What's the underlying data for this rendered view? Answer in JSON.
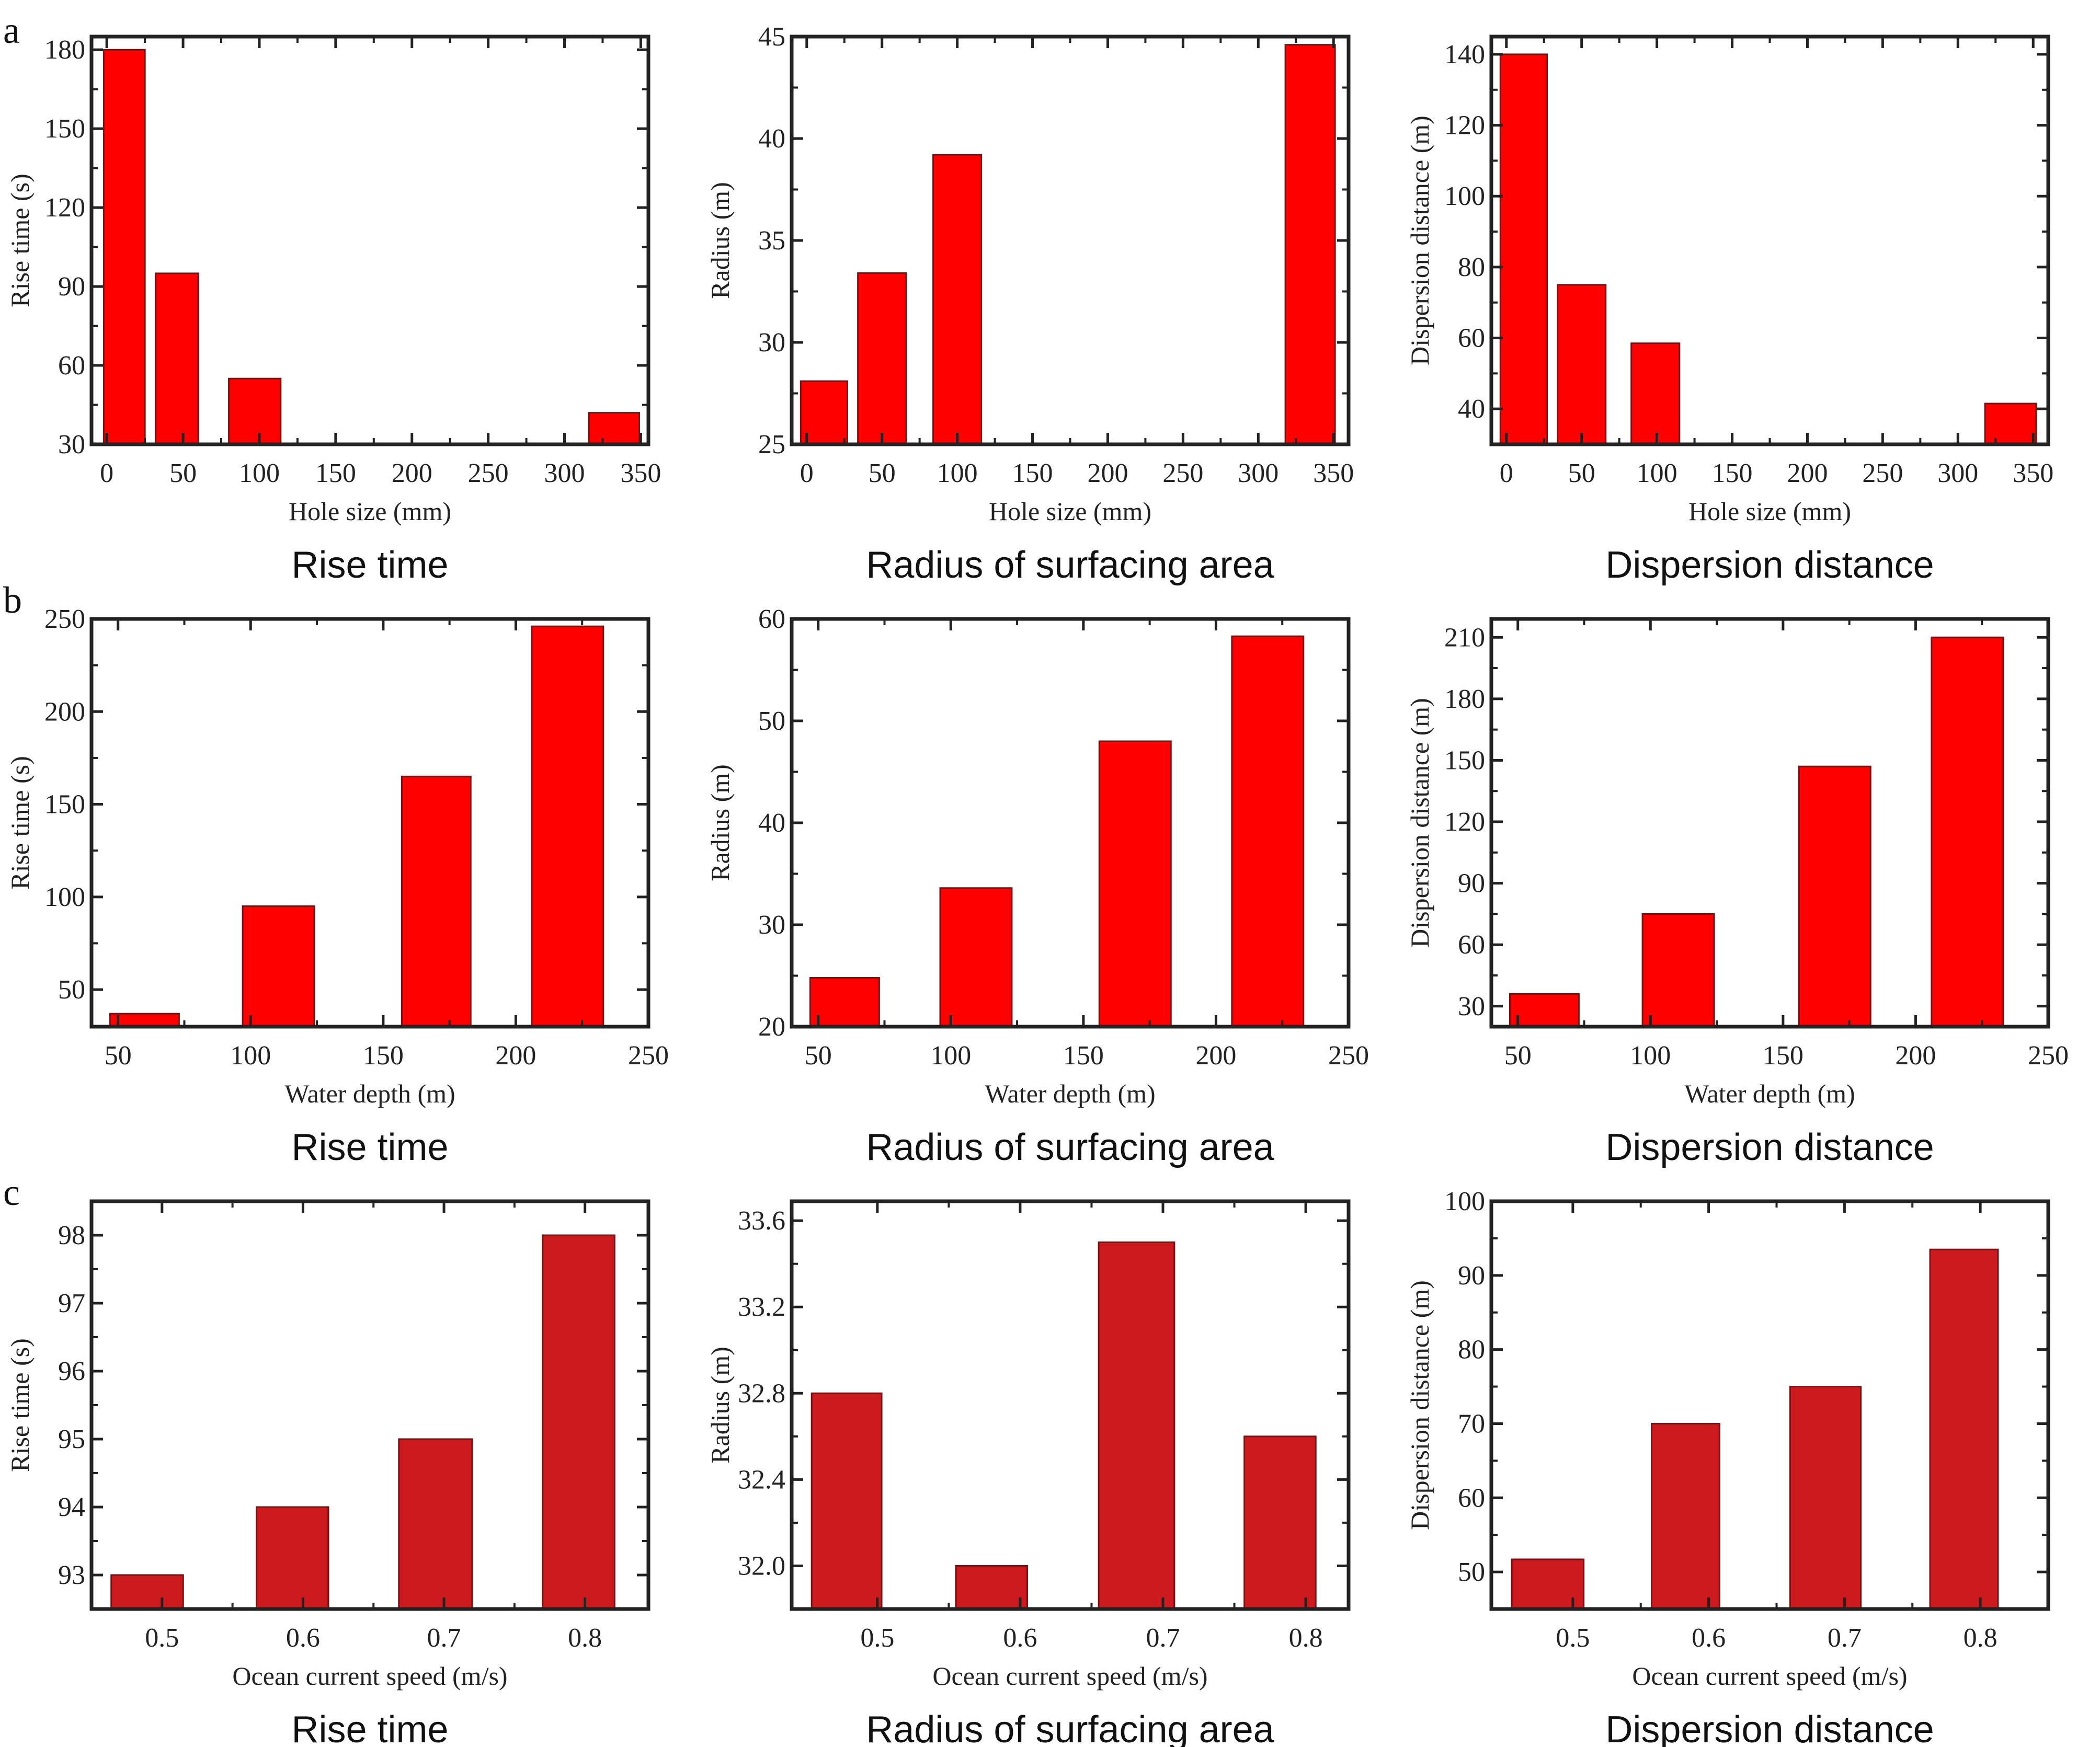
{
  "figure": {
    "row_labels": [
      "a",
      "b",
      "c"
    ]
  },
  "chart_data": [
    {
      "id": "a1",
      "row": 0,
      "col": 0,
      "type": "bar",
      "title": "Rise time",
      "xlabel": "Hole size (mm)",
      "ylabel": "Rise time (s)",
      "xlim": [
        -10,
        355
      ],
      "ylim": [
        30,
        185
      ],
      "xticks": [
        0,
        50,
        100,
        150,
        200,
        250,
        300,
        350
      ],
      "xtick_labels": [
        "0",
        "50",
        "100",
        "150",
        "200",
        "250",
        "300",
        "350"
      ],
      "yticks": [
        30,
        60,
        90,
        120,
        150,
        180
      ],
      "ytick_labels": [
        "30",
        "60",
        "90",
        "120",
        "150",
        "180"
      ],
      "bars": [
        {
          "category": "0",
          "x_range": [
            -2,
            25
          ],
          "value": 180
        },
        {
          "category": "50",
          "x_range": [
            32,
            60
          ],
          "value": 95
        },
        {
          "category": "100",
          "x_range": [
            80,
            114
          ],
          "value": 55
        },
        {
          "category": "350",
          "x_range": [
            316,
            349
          ],
          "value": 42
        }
      ],
      "color": "#ff0000",
      "grid": false
    },
    {
      "id": "a2",
      "row": 0,
      "col": 1,
      "type": "bar",
      "title": "Radius of surfacing area",
      "xlabel": "Hole size (mm)",
      "ylabel": "Radius (m)",
      "xlim": [
        -10,
        360
      ],
      "ylim": [
        25,
        45
      ],
      "xticks": [
        0,
        50,
        100,
        150,
        200,
        250,
        300,
        350
      ],
      "xtick_labels": [
        "0",
        "50",
        "100",
        "150",
        "200",
        "250",
        "300",
        "350"
      ],
      "yticks": [
        25,
        30,
        35,
        40,
        45
      ],
      "ytick_labels": [
        "25",
        "30",
        "35",
        "40",
        "45"
      ],
      "bars": [
        {
          "category": "0",
          "x_range": [
            -4,
            27
          ],
          "value": 28.1
        },
        {
          "category": "50",
          "x_range": [
            34,
            66
          ],
          "value": 33.4
        },
        {
          "category": "100",
          "x_range": [
            84,
            116
          ],
          "value": 39.2
        },
        {
          "category": "350",
          "x_range": [
            318,
            351
          ],
          "value": 44.6
        }
      ],
      "color": "#ff0000",
      "grid": false
    },
    {
      "id": "a3",
      "row": 0,
      "col": 2,
      "type": "bar",
      "title": "Dispersion distance",
      "xlabel": "Hole size (mm)",
      "ylabel": "Dispersion distance (m)",
      "xlim": [
        -10,
        360
      ],
      "ylim": [
        30,
        145
      ],
      "xticks": [
        0,
        50,
        100,
        150,
        200,
        250,
        300,
        350
      ],
      "xtick_labels": [
        "0",
        "50",
        "100",
        "150",
        "200",
        "250",
        "300",
        "350"
      ],
      "yticks": [
        40,
        60,
        80,
        100,
        120,
        140
      ],
      "ytick_labels": [
        "40",
        "60",
        "80",
        "100",
        "120",
        "140"
      ],
      "bars": [
        {
          "category": "0",
          "x_range": [
            -4,
            27
          ],
          "value": 140
        },
        {
          "category": "50",
          "x_range": [
            34,
            66
          ],
          "value": 75
        },
        {
          "category": "100",
          "x_range": [
            83,
            115
          ],
          "value": 58.5
        },
        {
          "category": "350",
          "x_range": [
            318,
            352
          ],
          "value": 41.5
        }
      ],
      "color": "#ff0000",
      "grid": false
    },
    {
      "id": "b1",
      "row": 1,
      "col": 0,
      "type": "bar",
      "title": "Rise time",
      "xlabel": "Water depth (m)",
      "ylabel": "Rise time (s)",
      "xlim": [
        40,
        250
      ],
      "ylim": [
        30,
        250
      ],
      "xticks": [
        50,
        100,
        150,
        200,
        250
      ],
      "xtick_labels": [
        "50",
        "100",
        "150",
        "200",
        "250"
      ],
      "yticks": [
        50,
        100,
        150,
        200,
        250
      ],
      "ytick_labels": [
        "50",
        "100",
        "150",
        "200",
        "250"
      ],
      "bars": [
        {
          "category": "50",
          "x_range": [
            47,
            73
          ],
          "value": 37
        },
        {
          "category": "100",
          "x_range": [
            97,
            124
          ],
          "value": 95
        },
        {
          "category": "150",
          "x_range": [
            157,
            183
          ],
          "value": 165
        },
        {
          "category": "200",
          "x_range": [
            206,
            233
          ],
          "value": 246
        }
      ],
      "color": "#ff0000",
      "grid": false
    },
    {
      "id": "b2",
      "row": 1,
      "col": 1,
      "type": "bar",
      "title": "Radius of surfacing area",
      "xlabel": "Water depth (m)",
      "ylabel": "Radius (m)",
      "xlim": [
        40,
        250
      ],
      "ylim": [
        20,
        60
      ],
      "xticks": [
        50,
        100,
        150,
        200,
        250
      ],
      "xtick_labels": [
        "50",
        "100",
        "150",
        "200",
        "250"
      ],
      "yticks": [
        20,
        30,
        40,
        50,
        60
      ],
      "ytick_labels": [
        "20",
        "30",
        "40",
        "50",
        "60"
      ],
      "bars": [
        {
          "category": "50",
          "x_range": [
            47,
            73
          ],
          "value": 24.8
        },
        {
          "category": "100",
          "x_range": [
            96,
            123
          ],
          "value": 33.6
        },
        {
          "category": "150",
          "x_range": [
            156,
            183
          ],
          "value": 48
        },
        {
          "category": "200",
          "x_range": [
            206,
            233
          ],
          "value": 58.3
        }
      ],
      "color": "#ff0000",
      "grid": false
    },
    {
      "id": "b3",
      "row": 1,
      "col": 2,
      "type": "bar",
      "title": "Dispersion distance",
      "xlabel": "Water depth (m)",
      "ylabel": "Dispersion distance (m)",
      "xlim": [
        40,
        250
      ],
      "ylim": [
        20,
        219
      ],
      "xticks": [
        50,
        100,
        150,
        200,
        250
      ],
      "xtick_labels": [
        "50",
        "100",
        "150",
        "200",
        "250"
      ],
      "yticks": [
        30,
        60,
        90,
        120,
        150,
        180,
        210
      ],
      "ytick_labels": [
        "30",
        "60",
        "90",
        "120",
        "150",
        "180",
        "210"
      ],
      "bars": [
        {
          "category": "50",
          "x_range": [
            47,
            73
          ],
          "value": 36
        },
        {
          "category": "100",
          "x_range": [
            97,
            124
          ],
          "value": 75
        },
        {
          "category": "150",
          "x_range": [
            156,
            183
          ],
          "value": 147
        },
        {
          "category": "200",
          "x_range": [
            206,
            233
          ],
          "value": 210
        }
      ],
      "color": "#ff0000",
      "grid": false
    },
    {
      "id": "c1",
      "row": 2,
      "col": 0,
      "type": "bar",
      "title": "Rise time",
      "xlabel": "Ocean current speed (m/s)",
      "ylabel": "Rise time (s)",
      "xlim": [
        0.45,
        0.845
      ],
      "ylim": [
        92.5,
        98.5
      ],
      "xticks": [
        0.5,
        0.6,
        0.7,
        0.8
      ],
      "xtick_labels": [
        "0.5",
        "0.6",
        "0.7",
        "0.8"
      ],
      "yticks": [
        93,
        94,
        95,
        96,
        97,
        98
      ],
      "ytick_labels": [
        "93",
        "94",
        "95",
        "96",
        "97",
        "98"
      ],
      "bars": [
        {
          "category": "0.5",
          "x_range": [
            0.464,
            0.515
          ],
          "value": 93
        },
        {
          "category": "0.6",
          "x_range": [
            0.567,
            0.618
          ],
          "value": 94
        },
        {
          "category": "0.7",
          "x_range": [
            0.668,
            0.72
          ],
          "value": 95
        },
        {
          "category": "0.8",
          "x_range": [
            0.77,
            0.821
          ],
          "value": 98
        }
      ],
      "color": "#cc1a1e",
      "grid": false
    },
    {
      "id": "c2",
      "row": 2,
      "col": 1,
      "type": "bar",
      "title": "Radius of surfacing area",
      "xlabel": "Ocean current speed (m/s)",
      "ylabel": "Radius (m)",
      "xlim": [
        0.44,
        0.83
      ],
      "ylim": [
        31.8,
        33.69
      ],
      "xticks": [
        0.5,
        0.6,
        0.7,
        0.8
      ],
      "xtick_labels": [
        "0.5",
        "0.6",
        "0.7",
        "0.8"
      ],
      "yticks": [
        32.0,
        32.4,
        32.8,
        33.2,
        33.6
      ],
      "ytick_labels": [
        "32.0",
        "32.4",
        "32.8",
        "33.2",
        "33.6"
      ],
      "bars": [
        {
          "category": "0.5",
          "x_range": [
            0.454,
            0.503
          ],
          "value": 32.8
        },
        {
          "category": "0.6",
          "x_range": [
            0.555,
            0.605
          ],
          "value": 32.0
        },
        {
          "category": "0.7",
          "x_range": [
            0.655,
            0.708
          ],
          "value": 33.5
        },
        {
          "category": "0.8",
          "x_range": [
            0.757,
            0.807
          ],
          "value": 32.6
        }
      ],
      "color": "#cc1a1e",
      "grid": false
    },
    {
      "id": "c3",
      "row": 2,
      "col": 2,
      "type": "bar",
      "title": "Dispersion distance",
      "xlabel": "Ocean current speed (m/s)",
      "ylabel": "Dispersion distance (m)",
      "xlim": [
        0.44,
        0.85
      ],
      "ylim": [
        45,
        100
      ],
      "xticks": [
        0.5,
        0.6,
        0.7,
        0.8
      ],
      "xtick_labels": [
        "0.5",
        "0.6",
        "0.7",
        "0.8"
      ],
      "yticks": [
        50,
        60,
        70,
        80,
        90,
        100
      ],
      "ytick_labels": [
        "50",
        "60",
        "70",
        "80",
        "90",
        "100"
      ],
      "bars": [
        {
          "category": "0.5",
          "x_range": [
            0.455,
            0.508
          ],
          "value": 51.7
        },
        {
          "category": "0.6",
          "x_range": [
            0.558,
            0.608
          ],
          "value": 70
        },
        {
          "category": "0.7",
          "x_range": [
            0.66,
            0.712
          ],
          "value": 75
        },
        {
          "category": "0.8",
          "x_range": [
            0.763,
            0.813
          ],
          "value": 93.5
        }
      ],
      "color": "#cc1a1e",
      "grid": false
    }
  ]
}
